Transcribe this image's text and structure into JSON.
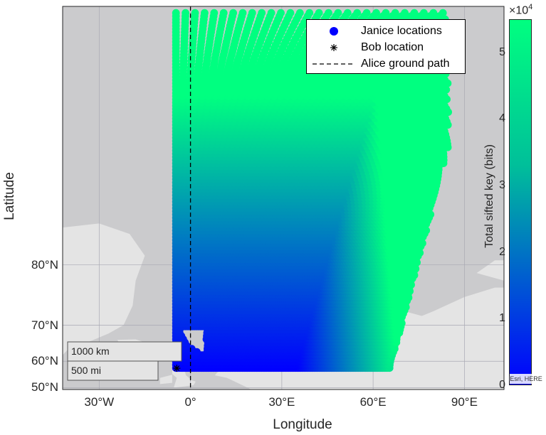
{
  "axes": {
    "xlabel": "Longitude",
    "ylabel": "Latitude",
    "x_ticks": [
      "30°W",
      "0°",
      "30°E",
      "60°E",
      "90°E"
    ],
    "y_ticks": [
      "50°N",
      "60°N",
      "70°N",
      "80°N"
    ],
    "x_tick_values": [
      -30,
      0,
      30,
      60,
      90
    ],
    "y_tick_values": [
      50,
      60,
      70,
      80
    ],
    "xlim_deg": [
      -42,
      103
    ],
    "ylim_deg": [
      49.2,
      89.5
    ]
  },
  "legend": {
    "placement": "top-right",
    "items": [
      {
        "label": "Janice locations",
        "marker": "filled-circle",
        "color": "#0000ff"
      },
      {
        "label": "Bob location",
        "marker": "asterisk",
        "color": "#000000"
      },
      {
        "label": "Alice ground path",
        "marker": "dashed-line",
        "color": "#000000"
      }
    ]
  },
  "colorbar": {
    "label": "Total sifted key (bits)",
    "exponent_label": "×10",
    "exponent_power": "4",
    "tick_labels": [
      "0",
      "1",
      "2",
      "3",
      "4",
      "5"
    ],
    "range": [
      0,
      55000
    ],
    "color_low": "#0000ff",
    "color_high": "#00ff80"
  },
  "scalebar": {
    "km_label": "1000 km",
    "mi_label": "500 mi"
  },
  "attribution": "Esri, HERE",
  "chart_data": {
    "type": "scatter",
    "title": "",
    "xlabel": "Longitude",
    "ylabel": "Latitude",
    "projection": "mercator",
    "bob_location": {
      "lon": -4.5,
      "lat": 57.6
    },
    "alice_ground_path": {
      "lon": 0,
      "lat_range": [
        49.2,
        89.5
      ]
    },
    "janice_grid": {
      "lon_min": -4.3,
      "lat_bottom": 57.7,
      "value_min": 0,
      "value_max": 55000,
      "description_of_value": "Total sifted key (bits)"
    }
  }
}
